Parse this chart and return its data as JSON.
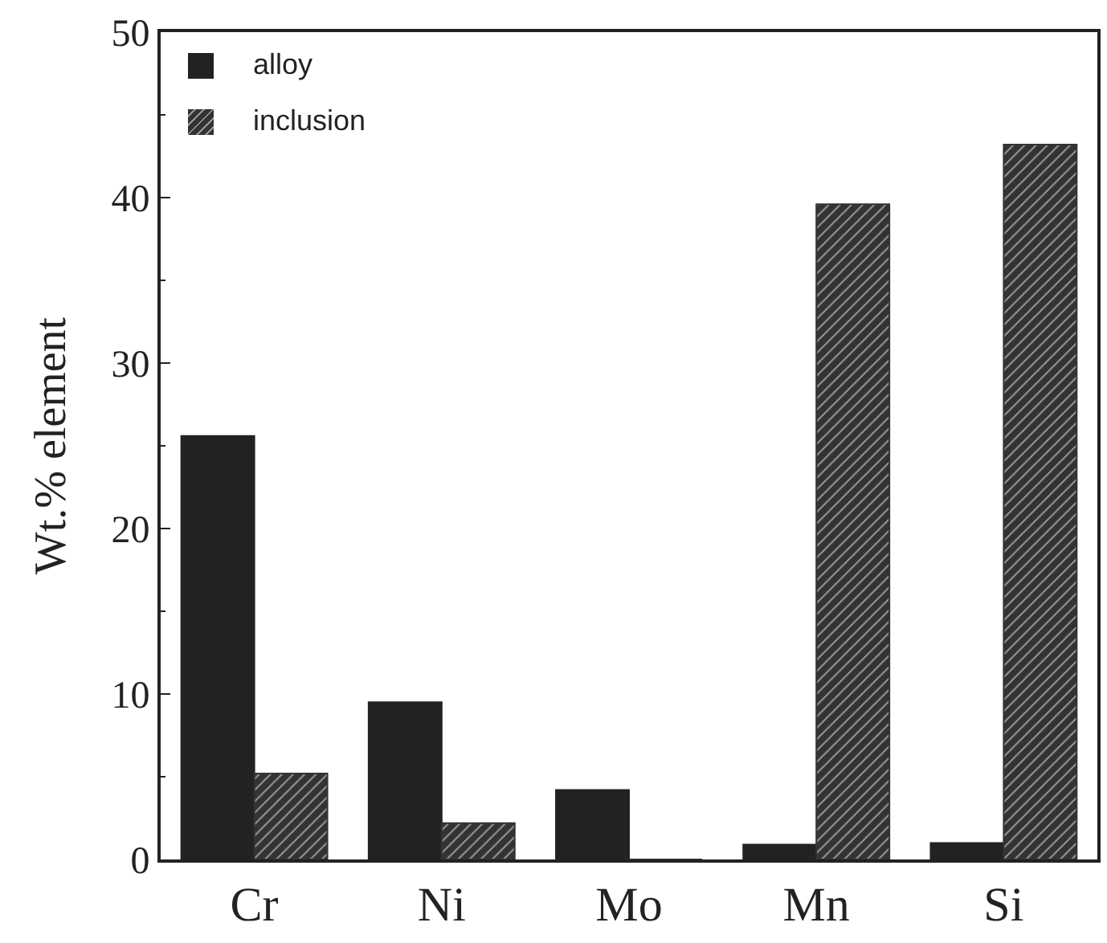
{
  "chart_data": {
    "type": "bar",
    "ylabel": "Wt.% element",
    "categories": [
      "Cr",
      "Ni",
      "Mo",
      "Mn",
      "Si"
    ],
    "series": [
      {
        "name": "alloy",
        "color": "#222222",
        "values": [
          25.6,
          9.5,
          4.2,
          0.9,
          1.0
        ]
      },
      {
        "name": "inclusion",
        "color": "#333333",
        "values": [
          5.2,
          2.2,
          0,
          39.6,
          43.2
        ]
      }
    ],
    "ylim": [
      0,
      50
    ],
    "yticks": [
      0,
      10,
      20,
      30,
      40,
      50
    ],
    "grid": false,
    "legend": "top left"
  }
}
